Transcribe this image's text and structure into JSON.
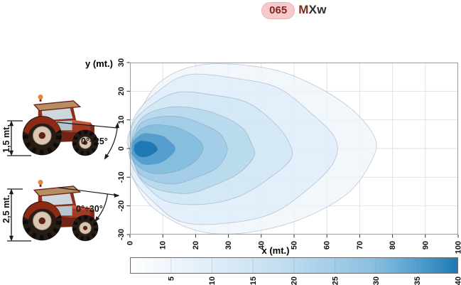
{
  "title": {
    "code": "065",
    "model_highlight": "M",
    "model_rest": "Xw"
  },
  "colors": {
    "badge_pink": "#f5caca",
    "badge_text_red": "#8b2121",
    "model_m_red": "#7c2d1e",
    "tractor_red": "#a23b24",
    "innermost_contour_blue": "#1d7ab2"
  },
  "figures": [
    {
      "height_label": "1,5 mt.",
      "angle_label": "0°÷25°"
    },
    {
      "height_label": "2,5 mt.",
      "angle_label": "0°÷30°"
    }
  ],
  "chart_data": {
    "type": "heatmap",
    "subtype": "filled_contour_isolux_beam_pattern",
    "title": "",
    "xlabel": "x (mt.)",
    "ylabel": "y (mt.)",
    "xlim": [
      0,
      100
    ],
    "ylim": [
      -30,
      30
    ],
    "x_ticks": [
      0,
      10,
      20,
      30,
      40,
      50,
      60,
      70,
      80,
      90,
      100
    ],
    "y_ticks": [
      30,
      20,
      10,
      0,
      -10,
      -20,
      -30
    ],
    "grid": true,
    "levels_lux": [
      {
        "value": 5,
        "x_min": 0,
        "x_max": 74,
        "y_top": 29.3,
        "y_bottom": -29.7,
        "color": "#eef5fb"
      },
      {
        "value": 10,
        "x_min": 0,
        "x_max": 62,
        "y_top": 25.5,
        "y_bottom": -26.5,
        "color": "#dfedf8"
      },
      {
        "value": 15,
        "x_min": 0.1,
        "x_max": 48.5,
        "y_top": 19.5,
        "y_bottom": -19.5,
        "color": "#cfe5f3"
      },
      {
        "value": 20,
        "x_min": 0.1,
        "x_max": 37.5,
        "y_top": 14.5,
        "y_bottom": -15.5,
        "color": "#badaee"
      },
      {
        "value": 25,
        "x_min": 0.2,
        "x_max": 29.5,
        "y_top": 11.2,
        "y_bottom": -12.2,
        "color": "#a3cde9"
      },
      {
        "value": 30,
        "x_min": 0.3,
        "x_max": 22,
        "y_top": 8.2,
        "y_bottom": -8.8,
        "color": "#86bede"
      },
      {
        "value": 35,
        "x_min": 0.6,
        "x_max": 13.5,
        "y_top": 5.2,
        "y_bottom": -5.6,
        "color": "#549fd0"
      },
      {
        "value": 40,
        "x_min": 1.2,
        "x_max": 8.3,
        "y_top": 2.7,
        "y_bottom": -3.0,
        "color": "#1d7ab2"
      }
    ],
    "colorbar": {
      "min": 0,
      "max": 40,
      "min_color": "#ffffff",
      "tick_values": [
        5,
        10,
        15,
        20,
        25,
        30,
        35,
        40
      ],
      "orientation": "horizontal"
    }
  }
}
